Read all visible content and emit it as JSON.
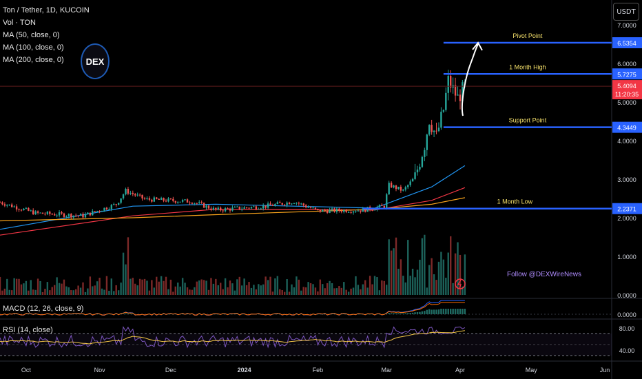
{
  "legend": {
    "symbol": "Ton / Tether, 1D, KUCOIN",
    "volume": "Vol · TON",
    "ma50": "MA (50, close, 0)",
    "ma100": "MA (100, close, 0)",
    "ma200": "MA (200, close, 0)"
  },
  "currency_button": "USDT",
  "logo_text": "DEX",
  "watermark": "Follow @DEXWireNews",
  "macd_label": "MACD (12, 26, close, 9)",
  "rsi_label": "RSI (14, close)",
  "colors": {
    "up": "#26a69a",
    "down": "#ef5350",
    "level": "#2962ff",
    "ma50": "#2196f3",
    "ma100": "#f23645",
    "ma200": "#f7a21b",
    "rsi": "#7e57c2",
    "text_yellow": "#f7e26b"
  },
  "chart_data": {
    "type": "candlestick",
    "price_axis": {
      "ticks": [
        "7.0000",
        "6.0000",
        "5.0000",
        "4.0000",
        "3.0000",
        "2.0000",
        "1.0000",
        "0.0000"
      ],
      "range": [
        0,
        7.5
      ]
    },
    "time_axis": {
      "ticks": [
        "Oct",
        "Nov",
        "Dec",
        "2024",
        "Feb",
        "Mar",
        "Apr",
        "May",
        "Jun"
      ]
    },
    "levels": [
      {
        "label": "Pivot Point",
        "value": 6.5354,
        "tag": "6.5354"
      },
      {
        "label": "1 Month High",
        "value": 5.7275,
        "tag": "5.7275"
      },
      {
        "label": "Support Point",
        "value": 4.3449,
        "tag": "4.3449"
      },
      {
        "label": "1 Month Low",
        "value": 2.2371,
        "tag": "2.2371"
      }
    ],
    "last_price": {
      "value": 5.4094,
      "tag": "5.4094",
      "countdown": "11:20:35"
    },
    "volume_axis": {
      "ticks": [
        "1.0000",
        "0.0000"
      ]
    },
    "macd_axis": {
      "ticks": [
        "0.0000"
      ]
    },
    "rsi_axis": {
      "ticks": [
        "80.00",
        "40.00"
      ],
      "range": [
        20,
        100
      ]
    },
    "anchors": [
      {
        "date": "2023-09-20",
        "close": 2.4
      },
      {
        "date": "2023-10-05",
        "close": 2.12
      },
      {
        "date": "2023-10-25",
        "close": 2.05
      },
      {
        "date": "2023-11-08",
        "close": 2.35
      },
      {
        "date": "2023-11-12",
        "close": 2.7
      },
      {
        "date": "2023-11-20",
        "close": 2.48
      },
      {
        "date": "2023-12-10",
        "close": 2.42
      },
      {
        "date": "2023-12-20",
        "close": 2.2
      },
      {
        "date": "2024-01-10",
        "close": 2.3
      },
      {
        "date": "2024-01-22",
        "close": 2.42
      },
      {
        "date": "2024-02-01",
        "close": 2.18
      },
      {
        "date": "2024-02-20",
        "close": 2.2
      },
      {
        "date": "2024-02-29",
        "close": 2.3
      },
      {
        "date": "2024-03-02",
        "close": 2.85
      },
      {
        "date": "2024-03-08",
        "close": 2.7
      },
      {
        "date": "2024-03-13",
        "close": 3.05
      },
      {
        "date": "2024-03-17",
        "close": 3.9
      },
      {
        "date": "2024-03-19",
        "close": 4.55
      },
      {
        "date": "2024-03-22",
        "close": 4.1
      },
      {
        "date": "2024-03-25",
        "close": 4.8
      },
      {
        "date": "2024-03-27",
        "close": 5.55
      },
      {
        "date": "2024-03-31",
        "close": 5.1
      },
      {
        "date": "2024-04-03",
        "close": 5.4
      }
    ],
    "moving_averages": {
      "ma50": [
        {
          "date": "2023-09-20",
          "v": 1.7
        },
        {
          "date": "2023-11-15",
          "v": 2.3
        },
        {
          "date": "2023-12-20",
          "v": 2.35
        },
        {
          "date": "2024-02-25",
          "v": 2.25
        },
        {
          "date": "2024-03-20",
          "v": 2.8
        },
        {
          "date": "2024-04-03",
          "v": 3.35
        }
      ],
      "ma100": [
        {
          "date": "2023-09-20",
          "v": 1.55
        },
        {
          "date": "2023-11-15",
          "v": 2.05
        },
        {
          "date": "2023-12-20",
          "v": 2.22
        },
        {
          "date": "2024-02-25",
          "v": 2.2
        },
        {
          "date": "2024-03-20",
          "v": 2.45
        },
        {
          "date": "2024-04-03",
          "v": 2.78
        }
      ],
      "ma200": [
        {
          "date": "2023-09-20",
          "v": 1.92
        },
        {
          "date": "2023-11-15",
          "v": 2.0
        },
        {
          "date": "2023-12-20",
          "v": 2.08
        },
        {
          "date": "2024-02-25",
          "v": 2.22
        },
        {
          "date": "2024-03-20",
          "v": 2.35
        },
        {
          "date": "2024-04-03",
          "v": 2.52
        }
      ]
    }
  }
}
